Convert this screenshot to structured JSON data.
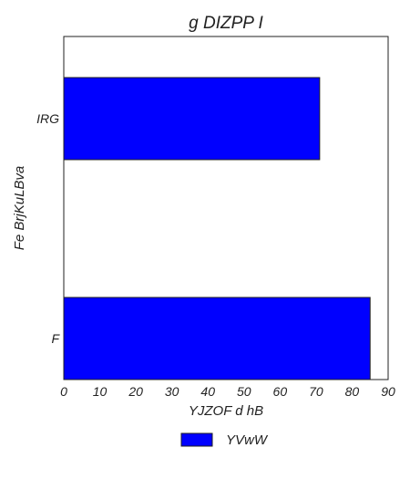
{
  "chart_data": {
    "type": "bar",
    "orientation": "horizontal",
    "title": "g DIZPP I",
    "xlabel": "YJZOF d hB",
    "ylabel": "Fe BrjKuLBva",
    "categories": [
      "F",
      "IRG"
    ],
    "series": [
      {
        "name": "YVwW",
        "values": [
          85,
          71
        ],
        "color": "#0000ff"
      }
    ],
    "xlim": [
      0,
      90
    ],
    "xticks": [
      0,
      10,
      20,
      30,
      40,
      50,
      60,
      70,
      80,
      90
    ],
    "grid": false,
    "legend": "bottom-center"
  }
}
